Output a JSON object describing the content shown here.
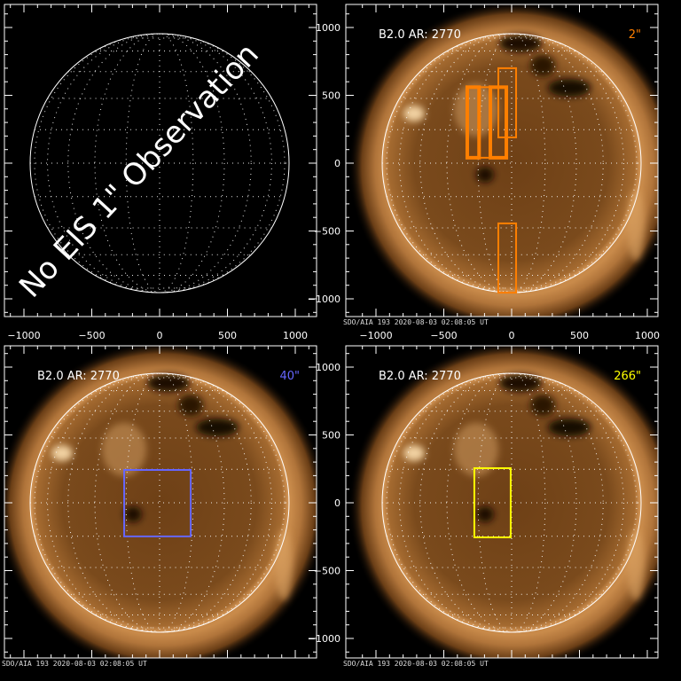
{
  "panels": [
    {
      "id": "top-left",
      "has_image": false,
      "message": "No EIS 1\" Observation",
      "x_tick_labels": [
        "−1000",
        "−500",
        "0",
        "500",
        "1000"
      ],
      "y_tick_labels": []
    },
    {
      "id": "top-right",
      "has_image": true,
      "title": "B2.0 AR: 2770",
      "scale_label": "2\"",
      "box_color": "#ff7f00",
      "footer": "SDO/AIA 193    2020-08-03 02:08:05 UT",
      "x_tick_labels": [
        "−1000",
        "−500",
        "0",
        "500",
        "1000"
      ],
      "y_tick_labels": [
        "1000",
        "500",
        "0",
        "−500",
        "−1000"
      ],
      "fov_boxes_arcsec": [
        {
          "x": [
            -327,
            -240
          ],
          "y": [
            40,
            560
          ],
          "thick": true
        },
        {
          "x": [
            -240,
            -157
          ],
          "y": [
            40,
            560
          ],
          "thick": false
        },
        {
          "x": [
            -157,
            -39
          ],
          "y": [
            40,
            560
          ],
          "thick": true
        },
        {
          "x": [
            -98,
            33
          ],
          "y": [
            190,
            700
          ],
          "thick": false
        },
        {
          "x": [
            -98,
            33
          ],
          "y": [
            -954,
            -444
          ],
          "thick": false
        }
      ]
    },
    {
      "id": "bottom-left",
      "has_image": true,
      "title": "B2.0 AR: 2770",
      "scale_label": "40\"",
      "box_color": "#6666ff",
      "footer": "SDO/AIA 193    2020-08-03 02:08:05 UT",
      "x_tick_labels": [],
      "y_tick_labels": [],
      "fov_boxes_arcsec": [
        {
          "x": [
            -261,
            229
          ],
          "y": [
            -248,
            242
          ],
          "thick": false
        }
      ]
    },
    {
      "id": "bottom-right",
      "has_image": true,
      "title": "B2.0 AR: 2770",
      "scale_label": "266\"",
      "box_color": "#ffff00",
      "footer": "SDO/AIA 193    2020-08-03 02:08:05 UT",
      "x_tick_labels": [],
      "y_tick_labels": [
        "1000",
        "500",
        "0",
        "−500",
        "−1000"
      ],
      "fov_boxes_arcsec": [
        {
          "x": [
            -275,
            -7
          ],
          "y": [
            -255,
            255
          ],
          "thick": false
        }
      ]
    }
  ],
  "axis_range_arcsec": [
    -1150,
    1150
  ],
  "colors": {
    "axes": "#ffffff",
    "sun_core": "#7a4a1c",
    "sun_limb": "#e8b070"
  }
}
